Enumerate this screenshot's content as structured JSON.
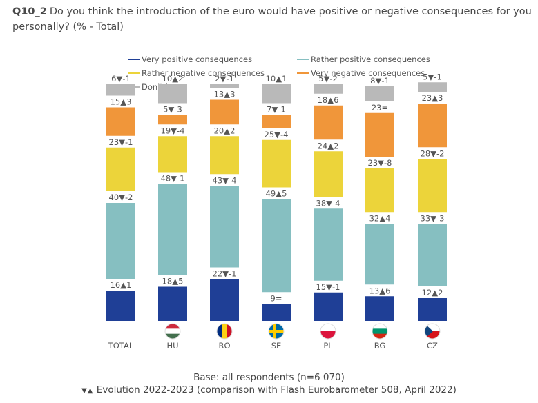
{
  "title": {
    "code": "Q10_2",
    "text": "Do you think the introduction of the euro would have positive or negative consequences for you personally? (% - Total)"
  },
  "footer": {
    "base": "Base: all respondents (n=6 070)",
    "evolution_symbols": "▼▲",
    "evolution": "Evolution 2022-2023 (comparison with Flash Eurobarometer 508, April 2022)"
  },
  "chart_data": {
    "type": "bar",
    "stacked": true,
    "categories": [
      "TOTAL",
      "HU",
      "RO",
      "SE",
      "PL",
      "BG",
      "CZ"
    ],
    "series": [
      {
        "name": "Very positive consequences",
        "color": "#1f3f96",
        "values": [
          16,
          18,
          22,
          9,
          15,
          13,
          12
        ],
        "labels": [
          "16▲1",
          "18▲5",
          "22▼-1",
          "9=",
          "15▼-1",
          "13▲6",
          "12▲2"
        ]
      },
      {
        "name": "Rather positive consequences",
        "color": "#86bfc1",
        "values": [
          40,
          48,
          43,
          49,
          38,
          32,
          33
        ],
        "labels": [
          "40▼-2",
          "48▼-1",
          "43▼-4",
          "49▲5",
          "38▼-4",
          "32▲4",
          "33▼-3"
        ]
      },
      {
        "name": "Rather negative consequences",
        "color": "#ecd43a",
        "values": [
          23,
          19,
          20,
          25,
          24,
          23,
          28
        ],
        "labels": [
          "23▼-1",
          "19▼-4",
          "20▲2",
          "25▼-4",
          "24▲2",
          "23▼-8",
          "28▼-2"
        ]
      },
      {
        "name": "Very negative consequences",
        "color": "#f0963a",
        "values": [
          15,
          5,
          13,
          7,
          18,
          23,
          23
        ],
        "labels": [
          "15▲3",
          "5▼-3",
          "13▲3",
          "7▼-1",
          "18▲6",
          "23=",
          "23▲3"
        ]
      },
      {
        "name": "Don't know",
        "color": "#b9b9b9",
        "values": [
          6,
          10,
          2,
          10,
          5,
          8,
          5
        ],
        "labels": [
          "6▼-1",
          "10▲2",
          "2▼-1",
          "10▲1",
          "5▼-2",
          "8▼-1",
          "5▼-1"
        ]
      }
    ],
    "flags": [
      "",
      "Hungary",
      "Romania",
      "Sweden",
      "Poland",
      "Bulgaria",
      "Czechia"
    ],
    "legend_position": "top",
    "grid": false
  }
}
